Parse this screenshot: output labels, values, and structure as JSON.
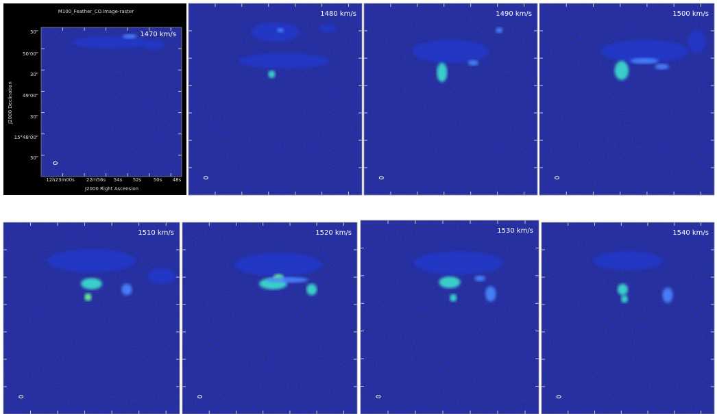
{
  "first_panel": {
    "title": "M100_Feather_CO.image-raster",
    "x_axis_label": "J2000 Right Ascension",
    "y_axis_label": "J2000 Declination",
    "y_tick_labels": [
      "30\"",
      "50'00\"",
      "30\"",
      "49'00\"",
      "30\"",
      "15°48'00\"",
      "30\""
    ],
    "x_tick_labels": [
      "12h23m00s",
      "22m56s",
      "54s",
      "52s",
      "50s",
      "48s"
    ]
  },
  "panels": [
    {
      "velocity": "1470 km/s"
    },
    {
      "velocity": "1480 km/s"
    },
    {
      "velocity": "1490 km/s"
    },
    {
      "velocity": "1500 km/s"
    },
    {
      "velocity": "1510 km/s"
    },
    {
      "velocity": "1520 km/s"
    },
    {
      "velocity": "1530 km/s"
    },
    {
      "velocity": "1540 km/s"
    }
  ]
}
